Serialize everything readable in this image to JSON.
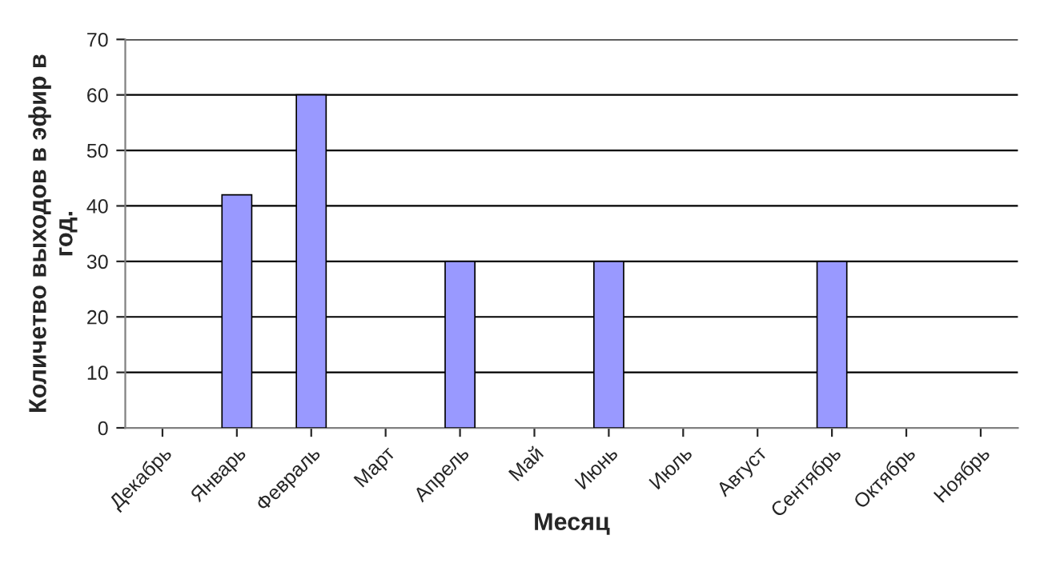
{
  "chart_data": {
    "type": "bar",
    "categories": [
      "Декабрь",
      "Январь",
      "Февраль",
      "Март",
      "Апрель",
      "Май",
      "Июнь",
      "Июль",
      "Август",
      "Сентябрь",
      "Октябрь",
      "Ноябрь"
    ],
    "values": [
      0,
      42,
      60,
      0,
      30,
      0,
      30,
      0,
      0,
      30,
      0,
      0
    ],
    "color": "#9999ff",
    "xlabel": "Месяц",
    "ylabel": "Количетво выходов в эфир в\nгод.",
    "ylim": [
      0,
      70
    ],
    "yticks": [
      0,
      10,
      20,
      30,
      40,
      50,
      60,
      70
    ],
    "grid": "y",
    "legend": false
  }
}
